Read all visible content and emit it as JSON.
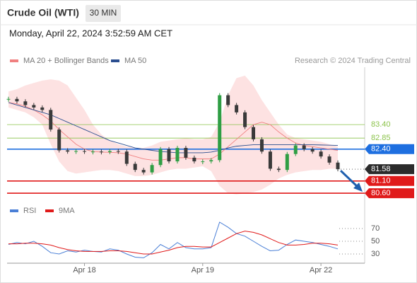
{
  "header": {
    "title": "Crude Oil (WTI)",
    "timeframe": "30 MIN",
    "date": "Monday, April 22, 2024 3:52:59 AM CET",
    "credit": "Research © 2024 Trading Central"
  },
  "chart_data": {
    "type": "candlestick",
    "categories": [
      null,
      null,
      null,
      null,
      null,
      null,
      null,
      null,
      null,
      "Apr 18",
      null,
      null,
      null,
      null,
      null,
      null,
      null,
      null,
      null,
      null,
      null,
      null,
      null,
      "Apr 19",
      null,
      null,
      null,
      null,
      null,
      null,
      null,
      null,
      null,
      null,
      null,
      null,
      null,
      "Apr 22",
      null,
      null
    ],
    "close": [
      84.45,
      84.35,
      84.2,
      84.1,
      84.0,
      83.2,
      82.35,
      82.3,
      82.32,
      82.3,
      82.3,
      82.28,
      82.32,
      82.3,
      81.8,
      81.55,
      81.45,
      81.75,
      82.4,
      81.9,
      82.45,
      82.05,
      81.9,
      81.9,
      81.95,
      84.6,
      84.2,
      83.9,
      83.3,
      82.8,
      82.3,
      81.6,
      81.55,
      82.2,
      82.55,
      82.4,
      82.3,
      82.1,
      81.85,
      81.58
    ],
    "up_color": "#2f9e44",
    "down_color": "#3a3a3a",
    "ylim": [
      80.4,
      85.6
    ],
    "series": [
      {
        "name": "MA 20 + Bollinger Bands",
        "color": "#f08080",
        "band_color": "#fde2e2",
        "values": [
          84.3,
          84.25,
          84.15,
          84.0,
          83.8,
          83.55,
          83.2,
          82.9,
          82.6,
          82.4,
          82.3,
          82.28,
          82.27,
          82.25,
          82.2,
          82.1,
          82.0,
          81.95,
          81.95,
          82.0,
          82.05,
          82.05,
          82.0,
          82.0,
          82.0,
          82.2,
          82.5,
          82.8,
          83.1,
          83.4,
          83.5,
          83.4,
          83.1,
          82.85,
          82.65,
          82.55,
          82.5,
          82.45,
          82.4,
          82.35
        ],
        "upper": [
          84.75,
          84.85,
          85.0,
          85.1,
          85.2,
          85.25,
          85.2,
          85.0,
          84.5,
          84.0,
          83.4,
          83.0,
          82.75,
          82.6,
          82.5,
          82.45,
          82.45,
          82.55,
          82.7,
          82.75,
          82.8,
          82.85,
          82.8,
          82.8,
          82.9,
          83.5,
          84.6,
          85.3,
          85.4,
          85.0,
          84.4,
          83.9,
          83.4,
          83.0,
          82.85,
          82.8,
          82.75,
          82.7,
          82.6,
          82.5
        ],
        "lower": [
          84.1,
          84.0,
          83.9,
          83.7,
          83.4,
          82.6,
          81.9,
          81.5,
          81.4,
          81.45,
          81.5,
          81.55,
          81.55,
          81.5,
          81.4,
          81.3,
          81.3,
          81.35,
          81.45,
          81.55,
          81.6,
          81.6,
          81.65,
          81.7,
          81.5,
          80.9,
          80.6,
          80.55,
          80.6,
          80.65,
          80.75,
          80.95,
          81.2,
          81.35,
          81.45,
          81.5,
          81.55,
          81.55,
          81.6,
          81.6
        ]
      },
      {
        "name": "MA 50",
        "color": "#2a4d8f",
        "values": [
          84.3,
          84.2,
          84.1,
          84.0,
          83.9,
          83.8,
          83.65,
          83.5,
          83.35,
          83.2,
          83.05,
          82.9,
          82.75,
          82.65,
          82.55,
          82.45,
          82.4,
          82.35,
          82.3,
          82.28,
          82.25,
          82.25,
          82.25,
          82.25,
          82.28,
          82.35,
          82.45,
          82.52,
          82.55,
          82.58,
          82.58,
          82.58,
          82.58,
          82.58,
          82.58,
          82.58,
          82.58,
          82.57,
          82.56,
          82.55
        ]
      }
    ],
    "levels": [
      {
        "value": 83.4,
        "label": "83.40",
        "color": "#8bc34a",
        "style": "text"
      },
      {
        "value": 82.85,
        "label": "82.85",
        "color": "#8bc34a",
        "style": "text"
      },
      {
        "value": 82.4,
        "label": "82.40",
        "color": "#1e6fe0",
        "style": "box"
      },
      {
        "value": 81.58,
        "label": "81.58",
        "color": "#2b2b2b",
        "style": "box"
      },
      {
        "value": 81.1,
        "label": "81.10",
        "color": "#e01a1a",
        "style": "box"
      },
      {
        "value": 80.6,
        "label": "80.60",
        "color": "#e01a1a",
        "style": "box"
      }
    ],
    "rsi": {
      "type": "line",
      "ylim": [
        15,
        85
      ],
      "yticks": [
        30,
        50,
        70
      ],
      "series": [
        {
          "name": "RSI",
          "color": "#4a7fd6",
          "values": [
            45,
            48,
            46,
            50,
            42,
            32,
            30,
            35,
            33,
            36,
            34,
            33,
            38,
            36,
            30,
            25,
            24,
            32,
            45,
            38,
            48,
            40,
            38,
            38,
            40,
            80,
            72,
            62,
            58,
            50,
            42,
            35,
            36,
            45,
            52,
            50,
            48,
            45,
            42,
            38
          ]
        },
        {
          "name": "9MA",
          "color": "#e01a1a",
          "values": [
            46,
            46,
            47,
            47,
            46,
            44,
            40,
            37,
            35,
            34,
            34,
            34,
            35,
            35,
            34,
            32,
            30,
            30,
            33,
            36,
            40,
            42,
            42,
            41,
            41,
            48,
            55,
            62,
            66,
            64,
            60,
            54,
            48,
            44,
            44,
            45,
            47,
            47,
            46,
            44
          ]
        }
      ]
    }
  }
}
